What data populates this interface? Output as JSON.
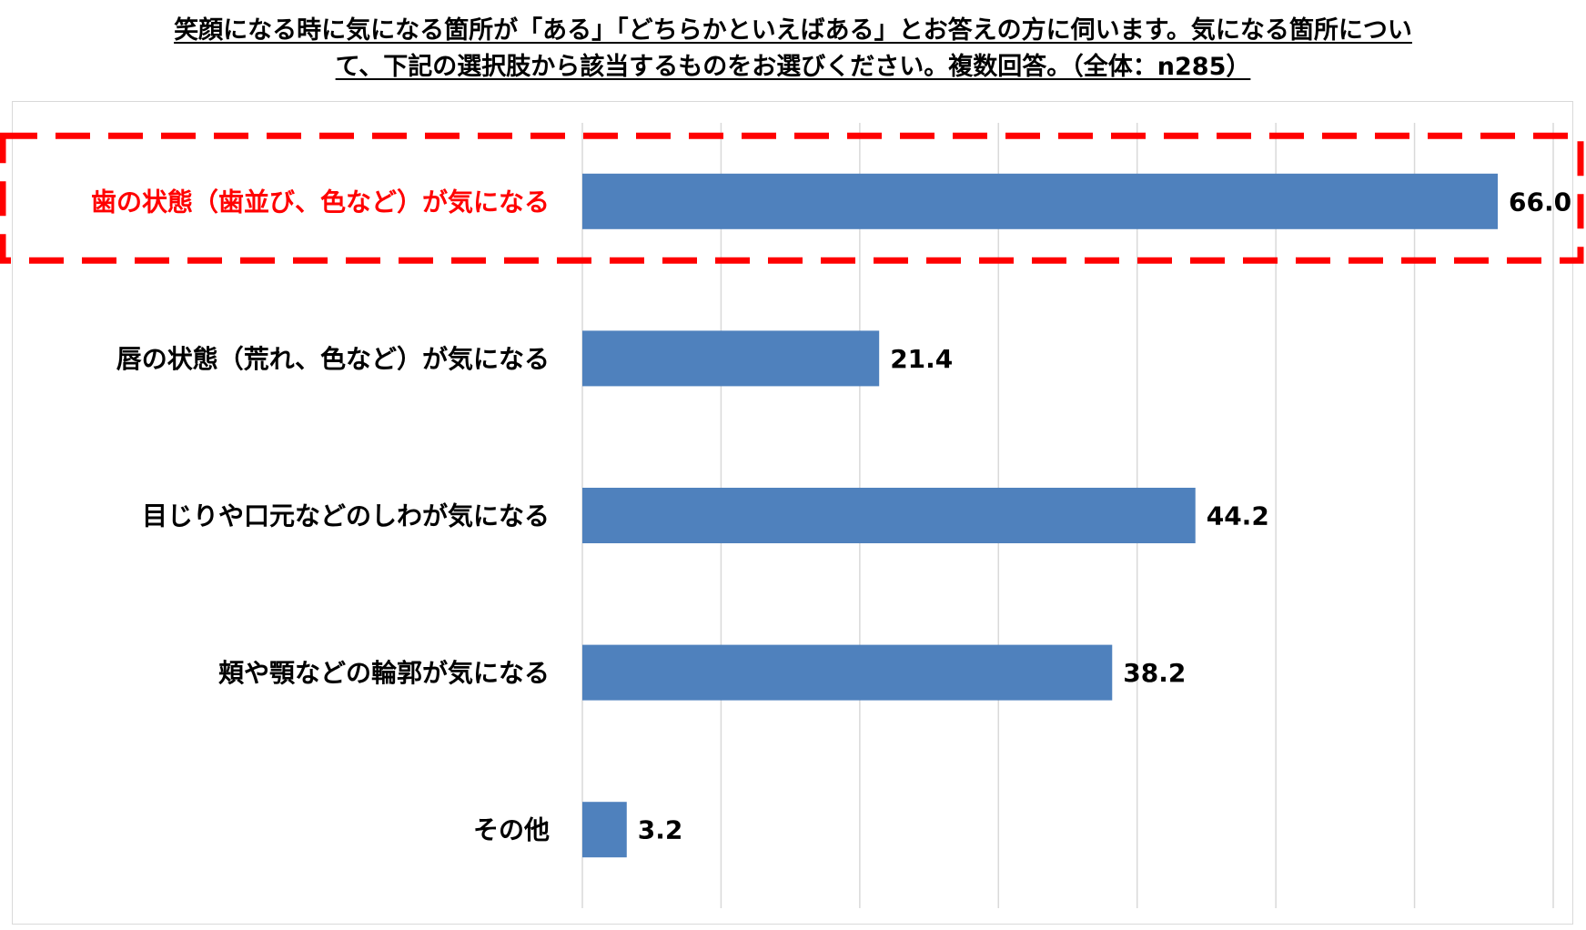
{
  "title": {
    "line1": "笑顔になる時に気になる箇所が「ある」「どちらかといえばある」とお答えの方に伺います。気になる箇所につい",
    "line2": "て、下記の選択肢から該当するものをお選びください。複数回答。（全体：n285）"
  },
  "chart_data": {
    "type": "bar",
    "orientation": "horizontal",
    "categories": [
      "歯の状態（歯並び、色など）が気になる",
      "唇の状態（荒れ、色など）が気になる",
      "目じりや口元などのしわが気になる",
      "頬や顎などの輪郭が気になる",
      "その他"
    ],
    "values": [
      66.0,
      21.4,
      44.2,
      38.2,
      3.2
    ],
    "value_labels": [
      "66.0",
      "21.4",
      "44.2",
      "38.2",
      "3.2"
    ],
    "highlighted_category_index": 0,
    "xlim": [
      0,
      70
    ],
    "gridline_step": 10,
    "grid": true,
    "legend": "none",
    "bar_color": "#4f81bd",
    "highlight_color": "#ff0000",
    "gridline_color": "#d9d9d9"
  }
}
